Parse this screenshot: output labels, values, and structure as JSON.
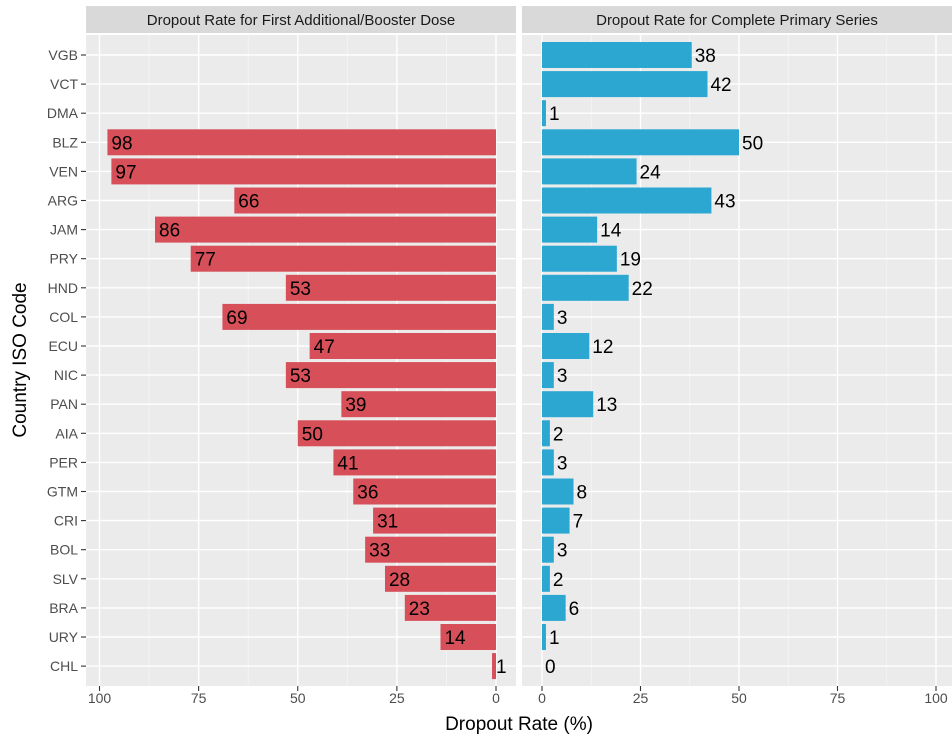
{
  "chart_data": {
    "type": "bar",
    "orientation": "horizontal",
    "xlabel": "Dropout Rate (%)",
    "ylabel": "Country ISO Code",
    "categories": [
      "VGB",
      "VCT",
      "DMA",
      "BLZ",
      "VEN",
      "ARG",
      "JAM",
      "PRY",
      "HND",
      "COL",
      "ECU",
      "NIC",
      "PAN",
      "AIA",
      "PER",
      "GTM",
      "CRI",
      "BOL",
      "SLV",
      "BRA",
      "URY",
      "CHL"
    ],
    "x_ticks": [
      0,
      25,
      50,
      75,
      100
    ],
    "x_tick_labels_left": [
      "100",
      "75",
      "50",
      "25",
      "0"
    ],
    "x_tick_labels_right": [
      "0",
      "25",
      "50",
      "75",
      "100"
    ],
    "xlim": [
      0,
      100
    ],
    "grid": true,
    "panels": [
      {
        "title": "Dropout Rate for First Additional/Booster Dose",
        "x_reversed": true,
        "color": "#d64f59",
        "values": [
          null,
          null,
          null,
          98,
          97,
          66,
          86,
          77,
          53,
          69,
          47,
          53,
          39,
          50,
          41,
          36,
          31,
          33,
          28,
          23,
          14,
          1
        ]
      },
      {
        "title": "Dropout Rate for Complete Primary Series",
        "x_reversed": false,
        "color": "#2ba7d2",
        "values": [
          38,
          42,
          1,
          50,
          24,
          43,
          14,
          19,
          22,
          3,
          12,
          3,
          13,
          2,
          3,
          8,
          7,
          3,
          2,
          6,
          1,
          0
        ]
      }
    ]
  }
}
